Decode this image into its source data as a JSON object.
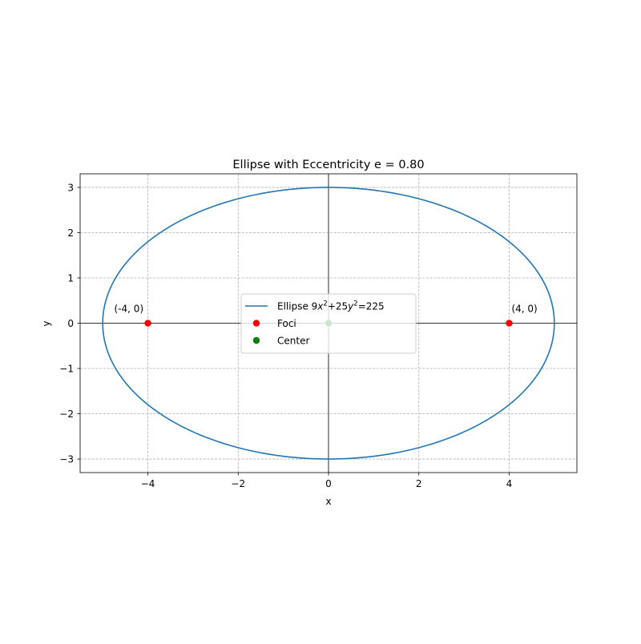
{
  "chart_data": {
    "type": "line",
    "title": "Ellipse with Eccentricity e = 0.80",
    "xlabel": "x",
    "ylabel": "y",
    "xlim": [
      -5.5,
      5.5
    ],
    "ylim": [
      -3.3,
      3.3
    ],
    "xticks": [
      -4,
      -2,
      0,
      2,
      4
    ],
    "xtick_labels": [
      "−4",
      "−2",
      "0",
      "2",
      "4"
    ],
    "yticks": [
      -3,
      -2,
      -1,
      0,
      1,
      2,
      3
    ],
    "ytick_labels": [
      "−3",
      "−2",
      "−1",
      "0",
      "1",
      "2",
      "3"
    ],
    "grid": true,
    "grid_style": "dashed",
    "legend_position": "center",
    "ellipse": {
      "a": 5,
      "b": 3,
      "center": [
        0,
        0
      ]
    },
    "series": [
      {
        "name": "Ellipse 9x²+25y²=225",
        "legend_math": {
          "pre": "Ellipse 9",
          "var1": "x",
          "sup1": "2",
          "mid": "+25",
          "var2": "y",
          "sup2": "2",
          "post": "=225"
        },
        "kind": "line",
        "color": "#1f77b4",
        "equation": "9x^2+25y^2=225"
      },
      {
        "name": "Foci",
        "kind": "scatter",
        "color": "#ff0000",
        "points": [
          [
            -4,
            0
          ],
          [
            4,
            0
          ]
        ]
      },
      {
        "name": "Center",
        "kind": "scatter",
        "color": "#008000",
        "points": [
          [
            0,
            0
          ]
        ]
      }
    ],
    "annotations": [
      {
        "text": "(-4, 0)",
        "x": -4,
        "y": 0,
        "anchor": "upper-left"
      },
      {
        "text": "(4, 0)",
        "x": 4,
        "y": 0,
        "anchor": "upper-right"
      }
    ],
    "reference_lines": {
      "x0": true,
      "y0": true,
      "color": "#000000"
    }
  }
}
